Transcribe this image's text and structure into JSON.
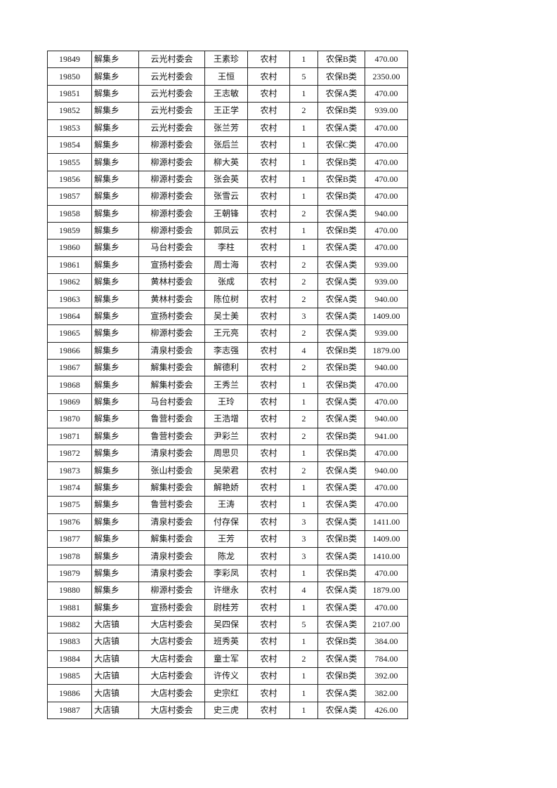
{
  "table": {
    "rows": [
      [
        "19849",
        "解集乡",
        "云光村委会",
        "王素珍",
        "农村",
        "1",
        "农保B类",
        "470.00"
      ],
      [
        "19850",
        "解集乡",
        "云光村委会",
        "王恒",
        "农村",
        "5",
        "农保B类",
        "2350.00"
      ],
      [
        "19851",
        "解集乡",
        "云光村委会",
        "王志敏",
        "农村",
        "1",
        "农保A类",
        "470.00"
      ],
      [
        "19852",
        "解集乡",
        "云光村委会",
        "王正学",
        "农村",
        "2",
        "农保B类",
        "939.00"
      ],
      [
        "19853",
        "解集乡",
        "云光村委会",
        "张兰芳",
        "农村",
        "1",
        "农保A类",
        "470.00"
      ],
      [
        "19854",
        "解集乡",
        "柳源村委会",
        "张后兰",
        "农村",
        "1",
        "农保C类",
        "470.00"
      ],
      [
        "19855",
        "解集乡",
        "柳源村委会",
        "柳大英",
        "农村",
        "1",
        "农保B类",
        "470.00"
      ],
      [
        "19856",
        "解集乡",
        "柳源村委会",
        "张会英",
        "农村",
        "1",
        "农保B类",
        "470.00"
      ],
      [
        "19857",
        "解集乡",
        "柳源村委会",
        "张雪云",
        "农村",
        "1",
        "农保B类",
        "470.00"
      ],
      [
        "19858",
        "解集乡",
        "柳源村委会",
        "王朝锋",
        "农村",
        "2",
        "农保A类",
        "940.00"
      ],
      [
        "19859",
        "解集乡",
        "柳源村委会",
        "郭凤云",
        "农村",
        "1",
        "农保B类",
        "470.00"
      ],
      [
        "19860",
        "解集乡",
        "马台村委会",
        "李柱",
        "农村",
        "1",
        "农保A类",
        "470.00"
      ],
      [
        "19861",
        "解集乡",
        "宣扬村委会",
        "周士海",
        "农村",
        "2",
        "农保A类",
        "939.00"
      ],
      [
        "19862",
        "解集乡",
        "黄林村委会",
        "张成",
        "农村",
        "2",
        "农保A类",
        "939.00"
      ],
      [
        "19863",
        "解集乡",
        "黄林村委会",
        "陈位树",
        "农村",
        "2",
        "农保A类",
        "940.00"
      ],
      [
        "19864",
        "解集乡",
        "宣扬村委会",
        "吴士美",
        "农村",
        "3",
        "农保A类",
        "1409.00"
      ],
      [
        "19865",
        "解集乡",
        "柳源村委会",
        "王元亮",
        "农村",
        "2",
        "农保A类",
        "939.00"
      ],
      [
        "19866",
        "解集乡",
        "清泉村委会",
        "李志强",
        "农村",
        "4",
        "农保B类",
        "1879.00"
      ],
      [
        "19867",
        "解集乡",
        "解集村委会",
        "解德利",
        "农村",
        "2",
        "农保B类",
        "940.00"
      ],
      [
        "19868",
        "解集乡",
        "解集村委会",
        "王秀兰",
        "农村",
        "1",
        "农保B类",
        "470.00"
      ],
      [
        "19869",
        "解集乡",
        "马台村委会",
        "王玲",
        "农村",
        "1",
        "农保A类",
        "470.00"
      ],
      [
        "19870",
        "解集乡",
        "鲁营村委会",
        "王浩增",
        "农村",
        "2",
        "农保A类",
        "940.00"
      ],
      [
        "19871",
        "解集乡",
        "鲁营村委会",
        "尹彩兰",
        "农村",
        "2",
        "农保B类",
        "941.00"
      ],
      [
        "19872",
        "解集乡",
        "清泉村委会",
        "周思贝",
        "农村",
        "1",
        "农保B类",
        "470.00"
      ],
      [
        "19873",
        "解集乡",
        "张山村委会",
        "吴荣君",
        "农村",
        "2",
        "农保A类",
        "940.00"
      ],
      [
        "19874",
        "解集乡",
        "解集村委会",
        "解艳娇",
        "农村",
        "1",
        "农保A类",
        "470.00"
      ],
      [
        "19875",
        "解集乡",
        "鲁营村委会",
        "王涛",
        "农村",
        "1",
        "农保A类",
        "470.00"
      ],
      [
        "19876",
        "解集乡",
        "清泉村委会",
        "付存保",
        "农村",
        "3",
        "农保A类",
        "1411.00"
      ],
      [
        "19877",
        "解集乡",
        "解集村委会",
        "王芳",
        "农村",
        "3",
        "农保B类",
        "1409.00"
      ],
      [
        "19878",
        "解集乡",
        "清泉村委会",
        "陈龙",
        "农村",
        "3",
        "农保A类",
        "1410.00"
      ],
      [
        "19879",
        "解集乡",
        "清泉村委会",
        "李彩凤",
        "农村",
        "1",
        "农保B类",
        "470.00"
      ],
      [
        "19880",
        "解集乡",
        "柳源村委会",
        "许继永",
        "农村",
        "4",
        "农保A类",
        "1879.00"
      ],
      [
        "19881",
        "解集乡",
        "宣扬村委会",
        "尉桂芳",
        "农村",
        "1",
        "农保A类",
        "470.00"
      ],
      [
        "19882",
        "大店镇",
        "大店村委会",
        "吴四保",
        "农村",
        "5",
        "农保A类",
        "2107.00"
      ],
      [
        "19883",
        "大店镇",
        "大店村委会",
        "班秀英",
        "农村",
        "1",
        "农保B类",
        "384.00"
      ],
      [
        "19884",
        "大店镇",
        "大店村委会",
        "童士军",
        "农村",
        "2",
        "农保A类",
        "784.00"
      ],
      [
        "19885",
        "大店镇",
        "大店村委会",
        "许传义",
        "农村",
        "1",
        "农保B类",
        "392.00"
      ],
      [
        "19886",
        "大店镇",
        "大店村委会",
        "史宗红",
        "农村",
        "1",
        "农保A类",
        "382.00"
      ],
      [
        "19887",
        "大店镇",
        "大店村委会",
        "史三虎",
        "农村",
        "1",
        "农保A类",
        "426.00"
      ]
    ]
  }
}
